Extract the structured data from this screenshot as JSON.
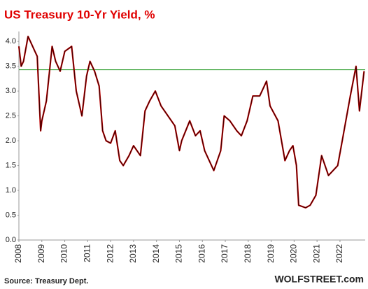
{
  "chart_data": {
    "type": "line",
    "title": "US Treasury 10-Yr Yield, %",
    "annotations": [
      "Source: Treasury Dept.",
      "WOLFSTREET.com"
    ],
    "x": [
      2008.0,
      2008.1,
      2008.2,
      2008.4,
      2008.5,
      2008.7,
      2008.8,
      2008.95,
      2009.0,
      2009.2,
      2009.45,
      2009.6,
      2009.8,
      2010.0,
      2010.3,
      2010.5,
      2010.75,
      2010.95,
      2011.1,
      2011.3,
      2011.5,
      2011.65,
      2011.8,
      2012.0,
      2012.2,
      2012.4,
      2012.55,
      2012.8,
      2013.0,
      2013.3,
      2013.5,
      2013.7,
      2013.95,
      2014.2,
      2014.5,
      2014.8,
      2015.0,
      2015.1,
      2015.45,
      2015.7,
      2015.9,
      2016.1,
      2016.5,
      2016.8,
      2016.95,
      2017.2,
      2017.5,
      2017.7,
      2017.95,
      2018.2,
      2018.5,
      2018.8,
      2018.95,
      2019.3,
      2019.6,
      2019.8,
      2019.95,
      2020.1,
      2020.2,
      2020.5,
      2020.7,
      2020.95,
      2021.2,
      2021.5,
      2021.9,
      2022.1,
      2022.45,
      2022.7,
      2022.85,
      2023.05
    ],
    "series": [
      {
        "name": "10-Yr Yield",
        "color": "#c00000",
        "values": [
          3.9,
          3.5,
          3.6,
          4.1,
          4.0,
          3.8,
          3.7,
          2.2,
          2.4,
          2.8,
          3.9,
          3.6,
          3.4,
          3.8,
          3.9,
          3.0,
          2.5,
          3.3,
          3.6,
          3.4,
          3.1,
          2.2,
          2.0,
          1.95,
          2.2,
          1.6,
          1.5,
          1.7,
          1.9,
          1.7,
          2.6,
          2.8,
          3.0,
          2.7,
          2.5,
          2.3,
          1.8,
          2.0,
          2.4,
          2.1,
          2.2,
          1.8,
          1.4,
          1.8,
          2.5,
          2.4,
          2.2,
          2.1,
          2.4,
          2.9,
          2.9,
          3.2,
          2.7,
          2.4,
          1.6,
          1.8,
          1.9,
          1.5,
          0.7,
          0.65,
          0.7,
          0.9,
          1.7,
          1.3,
          1.5,
          2.0,
          2.9,
          3.5,
          2.6,
          3.4
        ]
      }
    ],
    "reference_line": {
      "value": 3.43,
      "color": "#2e9e2e"
    },
    "xlim": [
      2008,
      2023.1
    ],
    "xticks": [
      2008,
      2009,
      2010,
      2011,
      2012,
      2013,
      2014,
      2015,
      2016,
      2017,
      2018,
      2019,
      2020,
      2021,
      2022
    ],
    "ylim": [
      0,
      4.2
    ],
    "yticks": [
      {
        "value": 0,
        "label": "0.0"
      },
      0.5,
      {
        "value": 1,
        "label": "1.0"
      },
      1.5,
      {
        "value": 2,
        "label": "2.0"
      },
      2.5,
      {
        "value": 3,
        "label": "3.0"
      },
      3.5,
      {
        "value": 4,
        "label": "4.0"
      }
    ],
    "grid": false
  }
}
